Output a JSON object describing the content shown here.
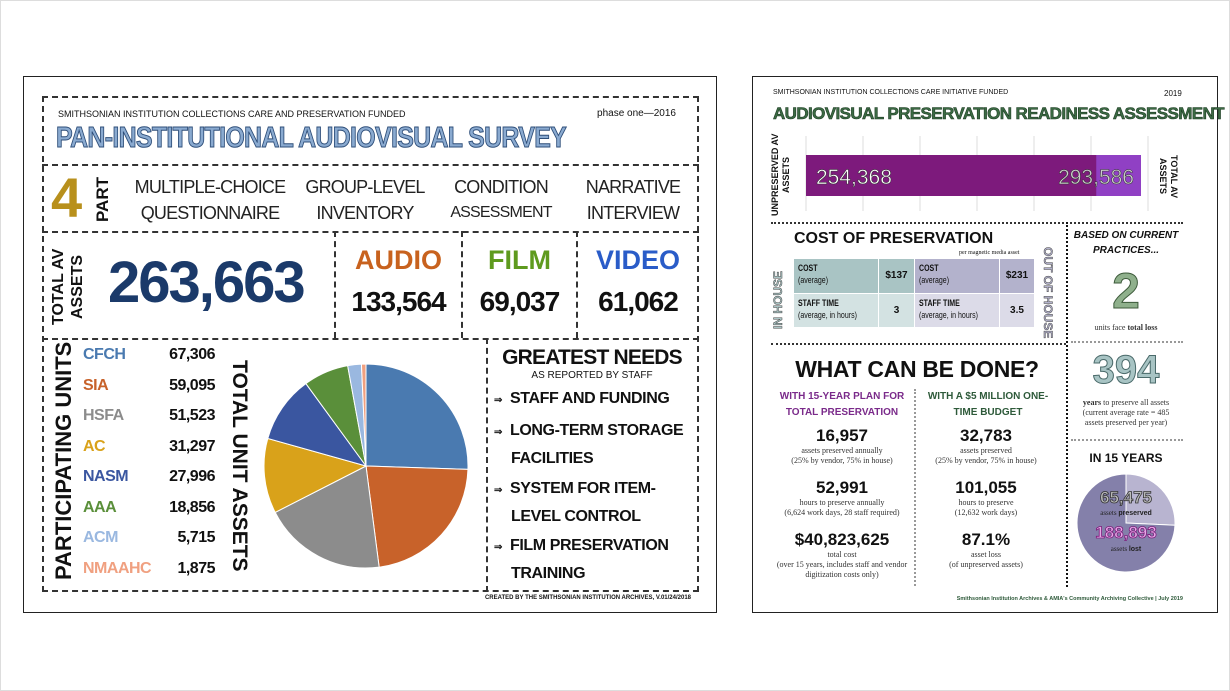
{
  "left": {
    "header_small": "SMITHSONIAN INSTITUTION COLLECTIONS CARE AND PRESERVATION FUNDED",
    "phase": "phase one—2016",
    "title": "PAN-INSTITUTIONAL AUDIOVISUAL SURVEY",
    "parts_number": "4",
    "parts_label": "PART",
    "parts": [
      {
        "line1": "MULTIPLE-CHOICE",
        "line2": "QUESTIONNAIRE"
      },
      {
        "line1": "GROUP-LEVEL",
        "line2": "INVENTORY"
      },
      {
        "line1": "CONDITION",
        "line2": "ASSESSMENT"
      },
      {
        "line1": "NARRATIVE",
        "line2": "INTERVIEW"
      }
    ],
    "total_label": "TOTAL AV ASSETS",
    "total_value": "263,663",
    "media": [
      {
        "label": "AUDIO",
        "value": "133,564",
        "color": "#c8621e"
      },
      {
        "label": "FILM",
        "value": "69,037",
        "color": "#5e9a1e"
      },
      {
        "label": "VIDEO",
        "value": "61,062",
        "color": "#2a5cc8"
      }
    ],
    "units_label": "PARTICIPATING UNITS",
    "units_total_label": "TOTAL UNIT ASSETS",
    "needs_title": "GREATEST NEEDS",
    "needs_subtitle": "AS REPORTED BY STAFF",
    "needs": [
      {
        "line1": "STAFF AND FUNDING",
        "line2": ""
      },
      {
        "line1": "LONG-TERM STORAGE",
        "line2": "FACILITIES"
      },
      {
        "line1": "SYSTEM FOR ITEM-",
        "line2": "LEVEL CONTROL"
      },
      {
        "line1": "FILM PRESERVATION",
        "line2": "TRAINING"
      }
    ],
    "footer": "CREATED BY THE SMITHSONIAN INSTITUTION ARCHIVES, V.01/24/2018"
  },
  "chart_data": [
    {
      "type": "pie",
      "title": "TOTAL UNIT ASSETS",
      "categories": [
        "CFCH",
        "SIA",
        "HSFA",
        "AC",
        "NASM",
        "AAA",
        "ACM",
        "NMAAHC"
      ],
      "labels": [
        "67,306",
        "59,095",
        "51,523",
        "31,297",
        "27,996",
        "18,856",
        "5,715",
        "1,875"
      ],
      "values": [
        67306,
        59095,
        51523,
        31297,
        27996,
        18856,
        5715,
        1875
      ],
      "colors": [
        "#4a7ab0",
        "#c8622a",
        "#8c8c8c",
        "#d9a21a",
        "#3a56a0",
        "#5a8f3a",
        "#9ab8e0",
        "#f0a080"
      ]
    },
    {
      "type": "bar",
      "categories": [
        "UNPRESERVED AV ASSETS",
        "TOTAL AV ASSETS"
      ],
      "labels": [
        "254,368",
        "293,586"
      ],
      "values": [
        254368,
        293586
      ],
      "colors": [
        "#7d1a7c",
        "#9040c4"
      ],
      "xlabel_left": "UNPRESERVED AV ASSETS",
      "xlabel_right": "TOTAL AV ASSETS"
    },
    {
      "type": "pie",
      "title": "IN 15 YEARS",
      "categories": [
        "assets preserved",
        "assets lost"
      ],
      "labels": [
        "65,475",
        "188,893"
      ],
      "values": [
        65475,
        188893
      ],
      "colors": [
        "#b8b4d0",
        "#8480aa"
      ]
    }
  ],
  "right": {
    "header_small": "SMITHSONIAN INSTITUTION COLLECTIONS CARE INITIATIVE FUNDED",
    "year": "2019",
    "title": "AUDIOVISUAL PRESERVATION READINESS ASSESSMENT",
    "cost_title": "COST OF PRESERVATION",
    "cost_note": "per magnetic media asset",
    "in_house": "IN HOUSE",
    "out_house": "OUT OF HOUSE",
    "cost_label": "COST",
    "cost_sub": "(average)",
    "staff_label": "STAFF TIME",
    "staff_sub": "(average, in hours)",
    "in_cost": "$137",
    "in_staff": "3",
    "out_cost": "$231",
    "out_staff": "3.5",
    "current_title": "BASED ON CURRENT PRACTICES...",
    "units_loss_num": "2",
    "units_loss_pre": "units face ",
    "units_loss_bold": "total loss",
    "years_num": "394",
    "years_bold": "years",
    "years_text": " to preserve all assets (current average rate = 485 assets preserved per year)",
    "in15_title": "IN 15 YEARS",
    "preserved_word": "preserved",
    "lost_word": "lost",
    "assets_word": "assets ",
    "what_title": "WHAT CAN BE DONE?",
    "plan_title": "WITH 15-YEAR PLAN FOR TOTAL PRESERVATION",
    "budget_title": "WITH A $5 MILLION ONE-TIME BUDGET",
    "plan": [
      {
        "value": "16,957",
        "desc": "assets preserved annually",
        "sub": "(25% by vendor, 75% in house)"
      },
      {
        "value": "52,991",
        "desc": "hours to preserve annually",
        "sub": "(6,624 work days, 28 staff required)"
      },
      {
        "value": "$40,823,625",
        "desc": "total cost",
        "sub": "(over 15 years, includes staff and vendor digitization costs only)"
      }
    ],
    "budget": [
      {
        "value": "32,783",
        "desc": "assets preserved",
        "sub": "(25% by vendor, 75% in house)"
      },
      {
        "value": "101,055",
        "desc": "hours to preserve",
        "sub": "(12,632 work days)"
      },
      {
        "value": "87.1%",
        "desc": "asset loss",
        "sub": "(of unpreserved assets)"
      }
    ],
    "footer": "Smithsonian Institution Archives & AMIA's Community Archiving Collective | July 2019"
  }
}
